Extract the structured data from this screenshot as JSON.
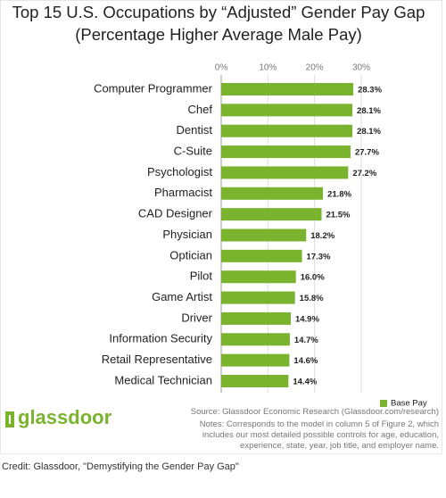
{
  "chart_data": {
    "type": "bar",
    "orientation": "horizontal",
    "title": "Top 15 U.S. Occupations by “Adjusted” Gender Pay Gap",
    "subtitle": "(Percentage Higher Average Male Pay)",
    "categories": [
      "Computer Programmer",
      "Chef",
      "Dentist",
      "C-Suite",
      "Psychologist",
      "Pharmacist",
      "CAD Designer",
      "Physician",
      "Optician",
      "Pilot",
      "Game Artist",
      "Driver",
      "Information Security",
      "Retail Representative",
      "Medical Technician"
    ],
    "series": [
      {
        "name": "Base Pay",
        "color": "#7ab32e",
        "values": [
          28.3,
          28.1,
          28.1,
          27.7,
          27.2,
          21.8,
          21.5,
          18.2,
          17.3,
          16.0,
          15.8,
          14.9,
          14.7,
          14.6,
          14.4
        ],
        "value_labels": [
          "28.3%",
          "28.1%",
          "28.1%",
          "27.7%",
          "27.2%",
          "21.8%",
          "21.5%",
          "18.2%",
          "17.3%",
          "16.0%",
          "15.8%",
          "14.9%",
          "14.7%",
          "14.6%",
          "14.4%"
        ]
      }
    ],
    "xlim": [
      0,
      30
    ],
    "xticks": [
      {
        "value": 0,
        "label": "0%"
      },
      {
        "value": 10,
        "label": "10%"
      },
      {
        "value": 20,
        "label": "20%"
      },
      {
        "value": 30,
        "label": "30%"
      }
    ],
    "grid": true,
    "legend": "bottom-right",
    "source": "Source: Glassdoor Economic Research (Glassdoor.com/research)",
    "notes": "Notes: Corresponds to the model in column 5 of Figure 2, which includes our most detailed possible controls for age, education, experience, state, year, job title, and employer name.",
    "logo": "glassdoor",
    "credit": "Credit: Glassdoor, \"Demystifying the Gender Pay Gap\""
  }
}
